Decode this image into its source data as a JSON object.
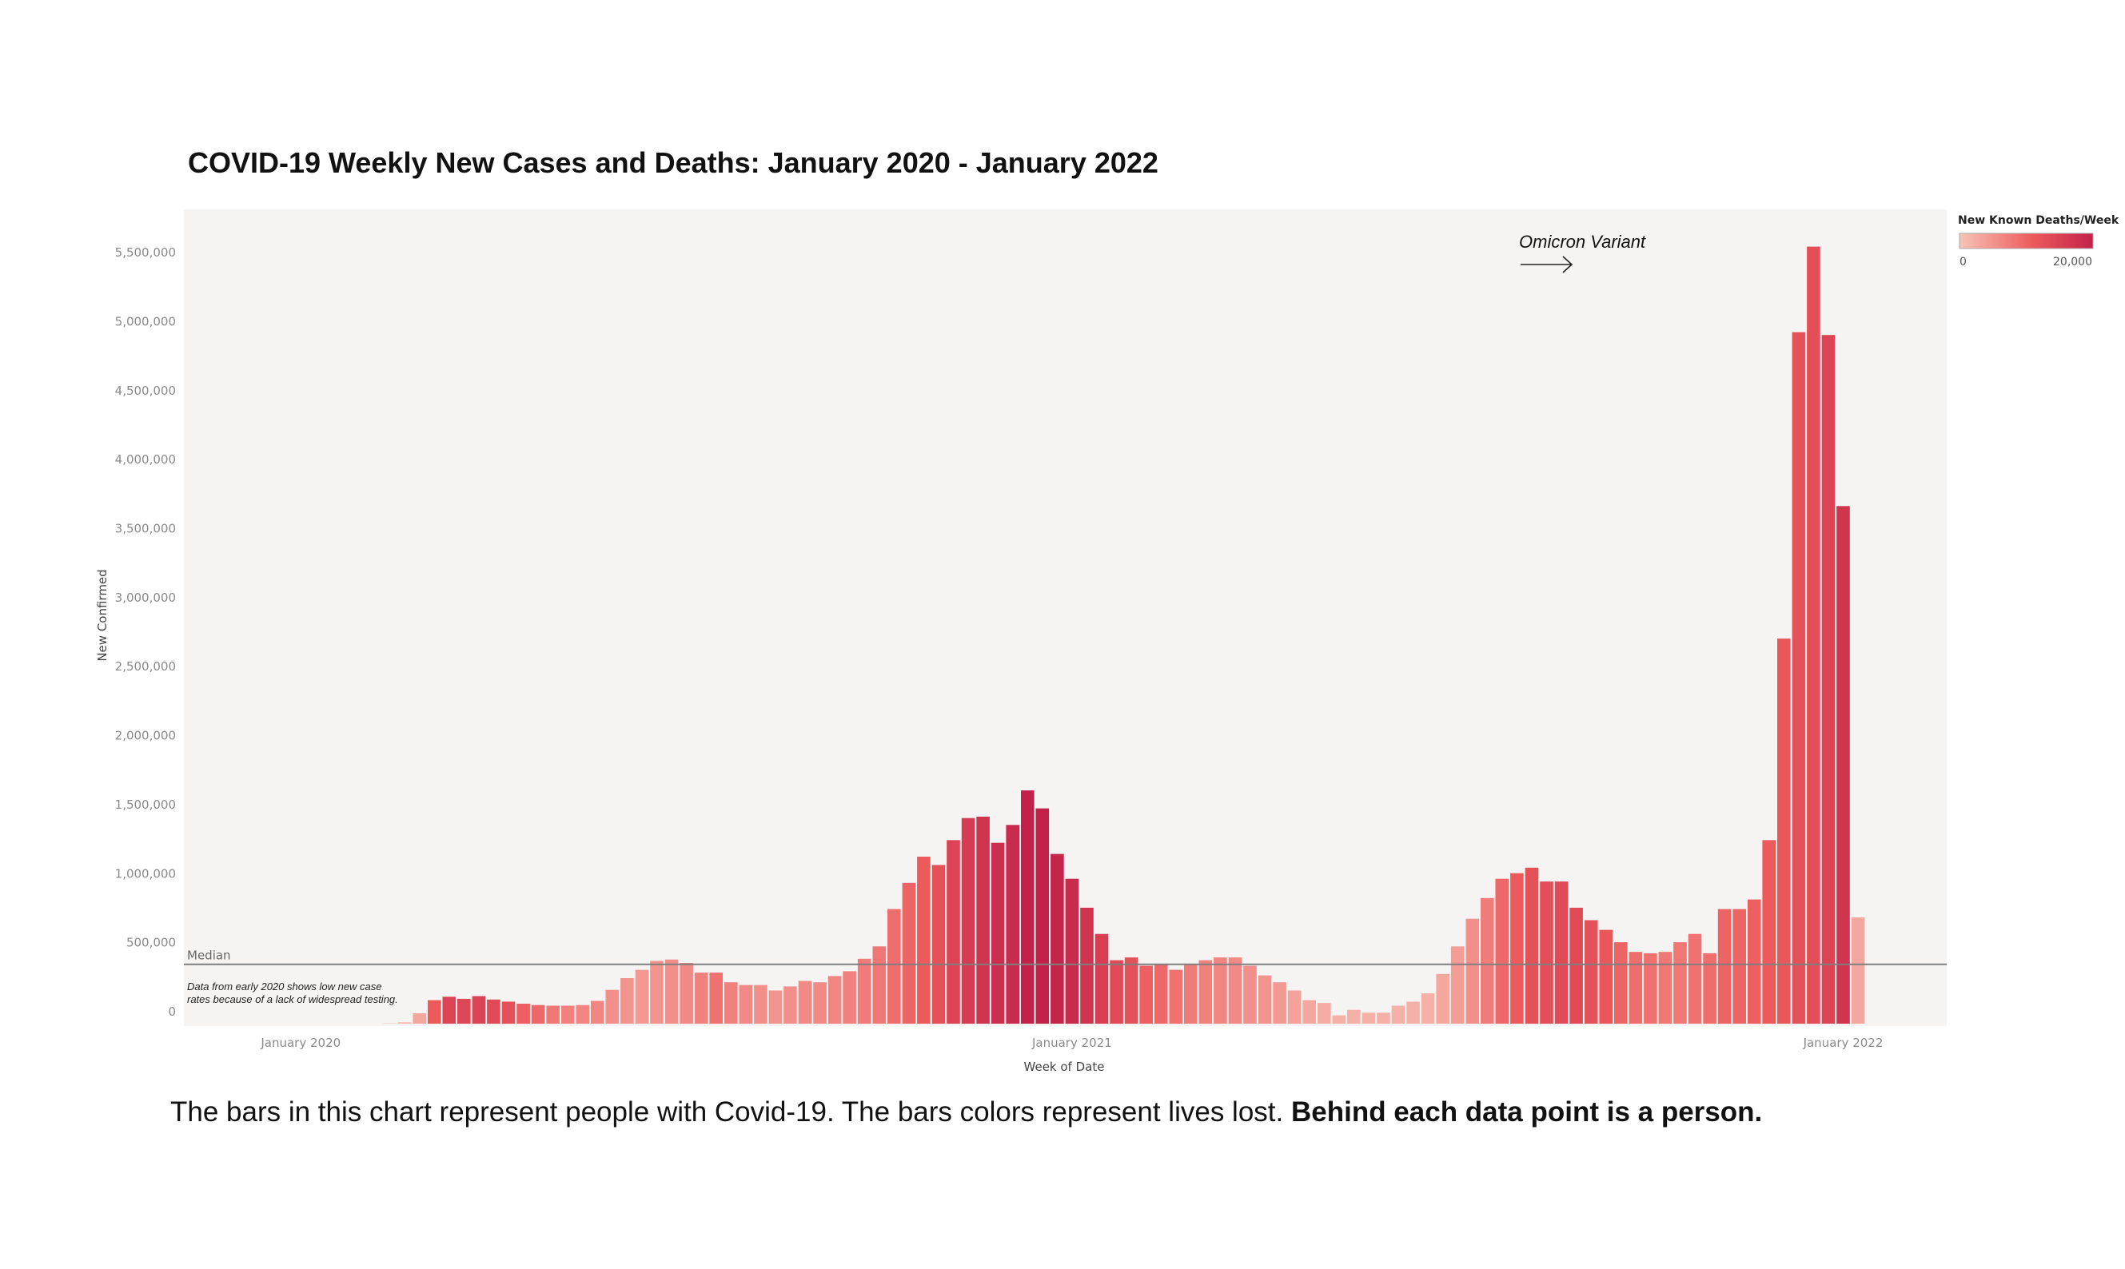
{
  "chart_data": {
    "type": "bar",
    "title": "COVID-19 Weekly New Cases and Deaths: January 2020 - January 2022",
    "xlabel": "Week of Date",
    "ylabel": "New Confirmed",
    "ylim": [
      0,
      5900000
    ],
    "yticks": [
      0,
      500000,
      1000000,
      1500000,
      2000000,
      2500000,
      3000000,
      3500000,
      4000000,
      4500000,
      5000000,
      5500000
    ],
    "ytick_labels": [
      "0",
      "500,000",
      "1,000,000",
      "1,500,000",
      "2,000,000",
      "2,500,000",
      "3,000,000",
      "3,500,000",
      "4,000,000",
      "4,500,000",
      "5,000,000",
      "5,500,000"
    ],
    "xtick_labels": [
      {
        "label": "January 2020",
        "week": 0
      },
      {
        "label": "January 2021",
        "week": 52
      },
      {
        "label": "January 2022",
        "week": 104
      }
    ],
    "color_legend": {
      "title": "New Known Deaths/Week",
      "min_label": "0",
      "max_label": "20,000",
      "min": 0,
      "max": 20000,
      "color_low": "#f7c4b8",
      "color_mid": "#ec5a5c",
      "color_high": "#c2224a"
    },
    "median": {
      "label": "Median",
      "value": 430000
    },
    "annotations": {
      "early_note_line1": "Data from early 2020 shows low new case",
      "early_note_line2": "rates because of a lack of widespread testing.",
      "omicron": "Omicron Variant"
    },
    "first_week_index": 6,
    "cases": [
      3000,
      10000,
      75000,
      170000,
      195000,
      180000,
      200000,
      175000,
      160000,
      145000,
      135000,
      130000,
      130000,
      135000,
      165000,
      245000,
      330000,
      390000,
      455000,
      465000,
      440000,
      370000,
      370000,
      300000,
      280000,
      280000,
      240000,
      270000,
      310000,
      300000,
      345000,
      380000,
      470000,
      560000,
      830000,
      1020000,
      1210000,
      1150000,
      1330000,
      1490000,
      1500000,
      1310000,
      1440000,
      1690000,
      1560000,
      1230000,
      1050000,
      840000,
      650000,
      460000,
      480000,
      420000,
      430000,
      390000,
      430000,
      460000,
      480000,
      480000,
      420000,
      350000,
      300000,
      240000,
      170000,
      150000,
      60000,
      100000,
      80000,
      80000,
      130000,
      160000,
      220000,
      360000,
      560000,
      760000,
      910000,
      1050000,
      1090000,
      1130000,
      1030000,
      1030000,
      840000,
      750000,
      680000,
      590000,
      520000,
      510000,
      520000,
      590000,
      650000,
      510000,
      830000,
      830000,
      900000,
      1330000,
      2790000,
      5010000,
      5630000,
      4990000,
      3750000,
      770000
    ],
    "deaths": [
      500,
      1000,
      3000,
      11000,
      14500,
      14000,
      14500,
      13500,
      12500,
      10500,
      9500,
      8000,
      7000,
      6500,
      6500,
      5500,
      5000,
      4500,
      5000,
      5500,
      6000,
      7000,
      8500,
      7000,
      6000,
      5500,
      5000,
      5500,
      6000,
      6000,
      6500,
      7000,
      7500,
      8000,
      9000,
      10000,
      11000,
      12500,
      14500,
      16000,
      17000,
      18000,
      18500,
      20000,
      20000,
      19500,
      18500,
      17000,
      15500,
      13500,
      12500,
      10500,
      9500,
      8500,
      7500,
      7000,
      6500,
      6000,
      5500,
      5000,
      4500,
      3500,
      3000,
      2500,
      2000,
      2000,
      2000,
      2000,
      2000,
      2000,
      2000,
      3000,
      4000,
      5500,
      7500,
      9500,
      11000,
      12500,
      13000,
      13500,
      13500,
      12500,
      11500,
      10000,
      9000,
      8500,
      8000,
      8000,
      8500,
      9000,
      10000,
      10000,
      10500,
      11000,
      11500,
      12500,
      13000,
      14500,
      17000,
      3000
    ]
  }
}
